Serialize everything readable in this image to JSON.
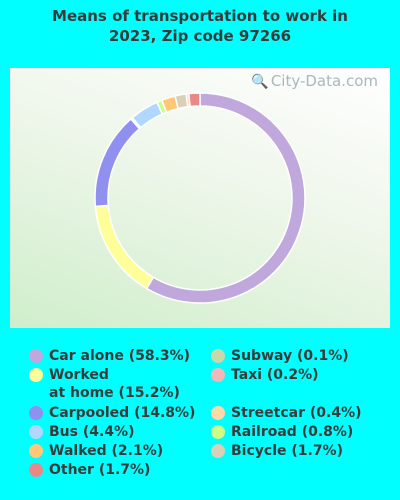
{
  "title": "Means of transportation to work in\n2023, Zip code 97266",
  "watermark": "City-Data.com",
  "chart_data": {
    "type": "pie",
    "donut": true,
    "title": "Means of transportation to work in 2023, Zip code 97266",
    "slices": [
      {
        "label": "Car alone (58.3%)",
        "value": 58.3,
        "color": "#c0a8dc"
      },
      {
        "label": "Worked\nat home (15.2%)",
        "value": 15.2,
        "color": "#ffff99"
      },
      {
        "label": "Carpooled (14.8%)",
        "value": 14.8,
        "color": "#9090f0"
      },
      {
        "label": "Taxi (0.2%)",
        "value": 0.2,
        "color": "#f0b8b8"
      },
      {
        "label": "Subway (0.1%)",
        "value": 0.1,
        "color": "#c8d8a8"
      },
      {
        "label": "Bus (4.4%)",
        "value": 4.4,
        "color": "#b0d8ff"
      },
      {
        "label": "Railroad (0.8%)",
        "value": 0.8,
        "color": "#ccff88"
      },
      {
        "label": "Walked (2.1%)",
        "value": 2.1,
        "color": "#ffc878"
      },
      {
        "label": "Bicycle (1.7%)",
        "value": 1.7,
        "color": "#d8d0b8"
      },
      {
        "label": "Streetcar (0.4%)",
        "value": 0.4,
        "color": "#ffd8a8"
      },
      {
        "label": "Other (1.7%)",
        "value": 1.7,
        "color": "#e88888"
      }
    ],
    "legend": {
      "left": [
        {
          "label": "Car alone (58.3%)",
          "color": "#c0a8dc"
        },
        {
          "label": "Worked\nat home (15.2%)",
          "color": "#ffff99"
        },
        {
          "label": "Carpooled (14.8%)",
          "color": "#9090f0"
        },
        {
          "label": "Bus (4.4%)",
          "color": "#b0d8ff"
        },
        {
          "label": "Walked (2.1%)",
          "color": "#ffc878"
        },
        {
          "label": "Other (1.7%)",
          "color": "#e88888"
        }
      ],
      "right": [
        {
          "label": "Subway (0.1%)",
          "color": "#c8d8a8"
        },
        {
          "label": "Taxi (0.2%)",
          "color": "#f0b8b8"
        },
        {
          "label": "Streetcar (0.4%)",
          "color": "#ffd8a8"
        },
        {
          "label": "Railroad (0.8%)",
          "color": "#ccff88"
        },
        {
          "label": "Bicycle (1.7%)",
          "color": "#d8d0b8"
        }
      ],
      "placement": "bottom"
    }
  }
}
